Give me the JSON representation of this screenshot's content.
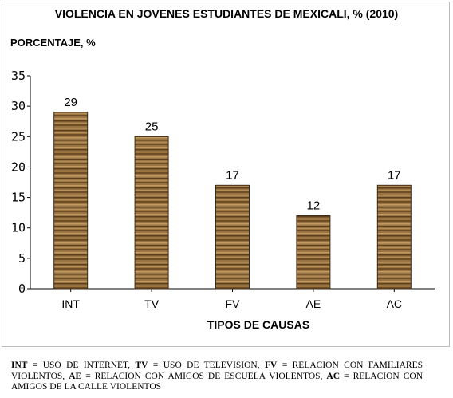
{
  "chart_data": {
    "type": "bar",
    "title": "VIOLENCIA EN JOVENES ESTUDIANTES DE MEXICALI, % (2010)",
    "ylabel": "PORCENTAJE, %",
    "xlabel": "TIPOS DE CAUSAS",
    "categories": [
      "INT",
      "TV",
      "FV",
      "AE",
      "AC"
    ],
    "values": [
      29,
      25,
      17,
      12,
      17
    ],
    "data_labels": [
      "29",
      "25",
      "17",
      "12",
      "17"
    ],
    "ylim": [
      0,
      35
    ],
    "yticks": [
      "0",
      "5",
      "10",
      "15",
      "20",
      "25",
      "30",
      "35"
    ],
    "grid": false,
    "legend": "none",
    "bar_color": "#8b6a3e"
  },
  "note": {
    "items": [
      {
        "abbr": "INT",
        "text": " =   USO DE INTERNET, "
      },
      {
        "abbr": "TV",
        "text": " = USO DE TELEVISION, "
      },
      {
        "abbr": "FV",
        "text": " = RELACION CON FAMILIARES VIOLENTOS, "
      },
      {
        "abbr": "AE",
        "text": " = RELACION CON AMIGOS DE ESCUELA VIOLENTOS, "
      },
      {
        "abbr": "AC",
        "text": " = RELACION CON AMIGOS DE LA CALLE VIOLENTOS"
      }
    ]
  }
}
